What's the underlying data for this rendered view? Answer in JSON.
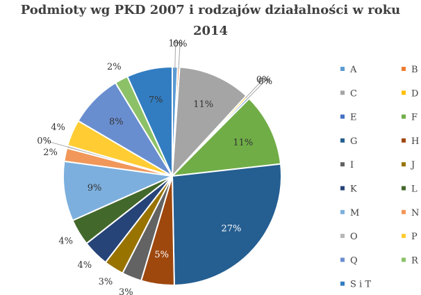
{
  "chart_data": {
    "type": "pie",
    "title_lines": [
      "Podmioty wg PKD 2007 i rodzajów działalności w roku",
      "2014"
    ],
    "legend_position": "right",
    "slices": [
      {
        "name": "A",
        "value": 0.8,
        "label": "1%",
        "color": "#5b9bd5"
      },
      {
        "name": "B",
        "value": 0.3,
        "label": "0%",
        "color": "#ed7d31"
      },
      {
        "name": "C",
        "value": 11.0,
        "label": "11%",
        "color": "#a5a5a5"
      },
      {
        "name": "D",
        "value": 0.3,
        "label": "0%",
        "color": "#ffc000"
      },
      {
        "name": "E",
        "value": 0.3,
        "label": "0%",
        "color": "#4472c4"
      },
      {
        "name": "F",
        "value": 11.0,
        "label": "11%",
        "color": "#70ad47"
      },
      {
        "name": "G",
        "value": 27.0,
        "label": "27%",
        "color": "#255e91"
      },
      {
        "name": "H",
        "value": 5.0,
        "label": "5%",
        "color": "#9e480e"
      },
      {
        "name": "I",
        "value": 3.0,
        "label": "3%",
        "color": "#636363"
      },
      {
        "name": "J",
        "value": 3.0,
        "label": "3%",
        "color": "#997300"
      },
      {
        "name": "K",
        "value": 4.0,
        "label": "4%",
        "color": "#264478"
      },
      {
        "name": "L",
        "value": 4.0,
        "label": "4%",
        "color": "#43682b"
      },
      {
        "name": "M",
        "value": 9.0,
        "label": "9%",
        "color": "#7cafdd"
      },
      {
        "name": "N",
        "value": 2.0,
        "label": "2%",
        "color": "#f1975a"
      },
      {
        "name": "O",
        "value": 0.4,
        "label": "0%",
        "color": "#b7b7b7"
      },
      {
        "name": "P",
        "value": 4.0,
        "label": "4%",
        "color": "#ffcd33"
      },
      {
        "name": "Q",
        "value": 8.0,
        "label": "8%",
        "color": "#698ed0"
      },
      {
        "name": "R",
        "value": 2.0,
        "label": "2%",
        "color": "#8cc168"
      },
      {
        "name": "S i T",
        "value": 6.9,
        "label": "7%",
        "color": "#327dc2"
      }
    ]
  }
}
